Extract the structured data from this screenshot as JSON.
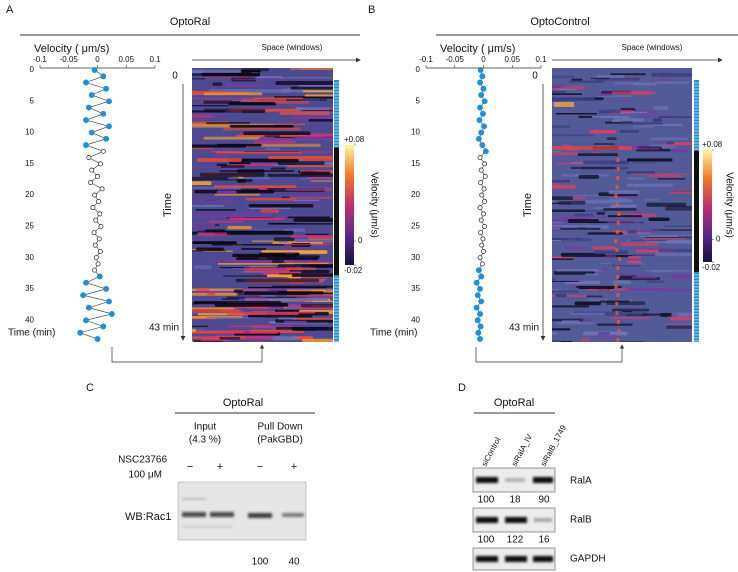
{
  "panels": [
    {
      "label": "A",
      "title": "OptoRal",
      "velocity_axis": {
        "label": "Velocity ( μm/s)",
        "xlim": [
          -0.1,
          0.1
        ],
        "xticks": [
          -0.1,
          -0.05,
          0,
          0.05,
          0.1
        ],
        "ylabel": "Time (min)",
        "ylim": [
          0,
          43
        ],
        "yticks": [
          0,
          5,
          10,
          15,
          20,
          25,
          30,
          35,
          40
        ]
      },
      "trace": {
        "time": [
          0,
          1,
          2,
          3,
          4,
          5,
          6,
          7,
          8,
          9,
          10,
          11,
          12,
          13,
          14,
          15,
          16,
          17,
          18,
          19,
          20,
          21,
          22,
          23,
          24,
          25,
          26,
          27,
          28,
          29,
          30,
          31,
          32,
          33,
          34,
          35,
          36,
          37,
          38,
          39,
          40,
          41,
          42,
          43
        ],
        "velocity": [
          -0.005,
          0.01,
          -0.02,
          0.015,
          -0.01,
          0.02,
          -0.015,
          0.01,
          -0.02,
          0.02,
          -0.01,
          0.015,
          -0.02,
          0.01,
          -0.015,
          0.005,
          -0.01,
          0.0,
          -0.012,
          0.008,
          -0.005,
          0.002,
          -0.008,
          0.004,
          -0.003,
          0.006,
          -0.006,
          0.003,
          -0.004,
          0.005,
          -0.002,
          0.001,
          -0.005,
          0.004,
          -0.02,
          0.015,
          -0.025,
          0.02,
          -0.015,
          0.025,
          -0.02,
          0.01,
          -0.03,
          0.0
        ],
        "blue_ranges": [
          [
            0,
            12.5
          ],
          [
            32.5,
            43
          ]
        ],
        "blue_color": "#1e90d8",
        "base_color": "#222222"
      },
      "kymograph": {
        "space_label": "Space (windows)",
        "start_label": "0",
        "time_label": "Time",
        "end_label": "43 min",
        "colorbar": {
          "label": "Velocity (μm/s)",
          "lim": [
            -0.02,
            0.08
          ],
          "ticks": [
            {
              "value": 0.08,
              "label": "+0.08"
            },
            0,
            -0.02
          ]
        }
      }
    },
    {
      "label": "B",
      "title": "OptoControl",
      "velocity_axis": {
        "label": "Velocity ( μm/s)",
        "xlim": [
          -0.1,
          0.1
        ],
        "xticks": [
          -0.1,
          -0.05,
          0,
          0.05,
          0.1
        ],
        "ylabel": "Time (min)",
        "ylim": [
          0,
          43
        ],
        "yticks": [
          0,
          5,
          10,
          15,
          20,
          25,
          30,
          35,
          40
        ]
      },
      "trace": {
        "time": [
          0,
          1,
          2,
          3,
          4,
          5,
          6,
          7,
          8,
          9,
          10,
          11,
          12,
          13,
          14,
          15,
          16,
          17,
          18,
          19,
          20,
          21,
          22,
          23,
          24,
          25,
          26,
          27,
          28,
          29,
          30,
          31,
          32,
          33,
          34,
          35,
          36,
          37,
          38,
          39,
          40,
          41,
          42,
          43
        ],
        "velocity": [
          -0.005,
          -0.002,
          -0.006,
          0.0,
          -0.004,
          0.002,
          -0.006,
          -0.001,
          -0.007,
          0.001,
          -0.004,
          -0.008,
          -0.002,
          0.004,
          -0.006,
          0.002,
          -0.004,
          0.003,
          -0.005,
          0.001,
          -0.003,
          0.002,
          -0.006,
          0.0,
          -0.004,
          0.002,
          -0.005,
          -0.001,
          -0.003,
          0.0,
          -0.006,
          -0.002,
          -0.008,
          -0.004,
          -0.012,
          -0.006,
          -0.01,
          -0.004,
          -0.012,
          -0.006,
          -0.01,
          -0.005,
          -0.009,
          -0.006
        ],
        "blue_ranges": [
          [
            0,
            13
          ],
          [
            32,
            43
          ]
        ],
        "blue_color": "#1e90d8",
        "base_color": "#222222"
      },
      "kymograph": {
        "space_label": "Space (windows)",
        "start_label": "0",
        "time_label": "Time",
        "end_label": "43 min",
        "colorbar": {
          "label": "Velocity (μm/s)",
          "lim": [
            -0.02,
            0.08
          ],
          "ticks": [
            {
              "value": 0.08,
              "label": "+0.08"
            },
            0,
            -0.02
          ]
        }
      }
    }
  ],
  "panel_c": {
    "label": "C",
    "title": "OptoRal",
    "groups": [
      {
        "name": "Input",
        "sub": "(4.3 %)"
      },
      {
        "name": "Pull Down",
        "sub": "(PakGBD)"
      }
    ],
    "treatment": "NSC23766",
    "dose": "100 μM",
    "signs": [
      "−",
      "+",
      "−",
      "+"
    ],
    "blot_label": "WB:Rac1",
    "quant": [
      100,
      40
    ]
  },
  "panel_d": {
    "label": "D",
    "title": "OptoRal",
    "lanes": [
      "siControl",
      "siRalA_IV",
      "siRalB_1749"
    ],
    "blots": [
      {
        "name": "RalA",
        "quant": [
          100,
          18,
          90
        ]
      },
      {
        "name": "RalB",
        "quant": [
          100,
          122,
          16
        ]
      },
      {
        "name": "GAPDH"
      }
    ]
  }
}
